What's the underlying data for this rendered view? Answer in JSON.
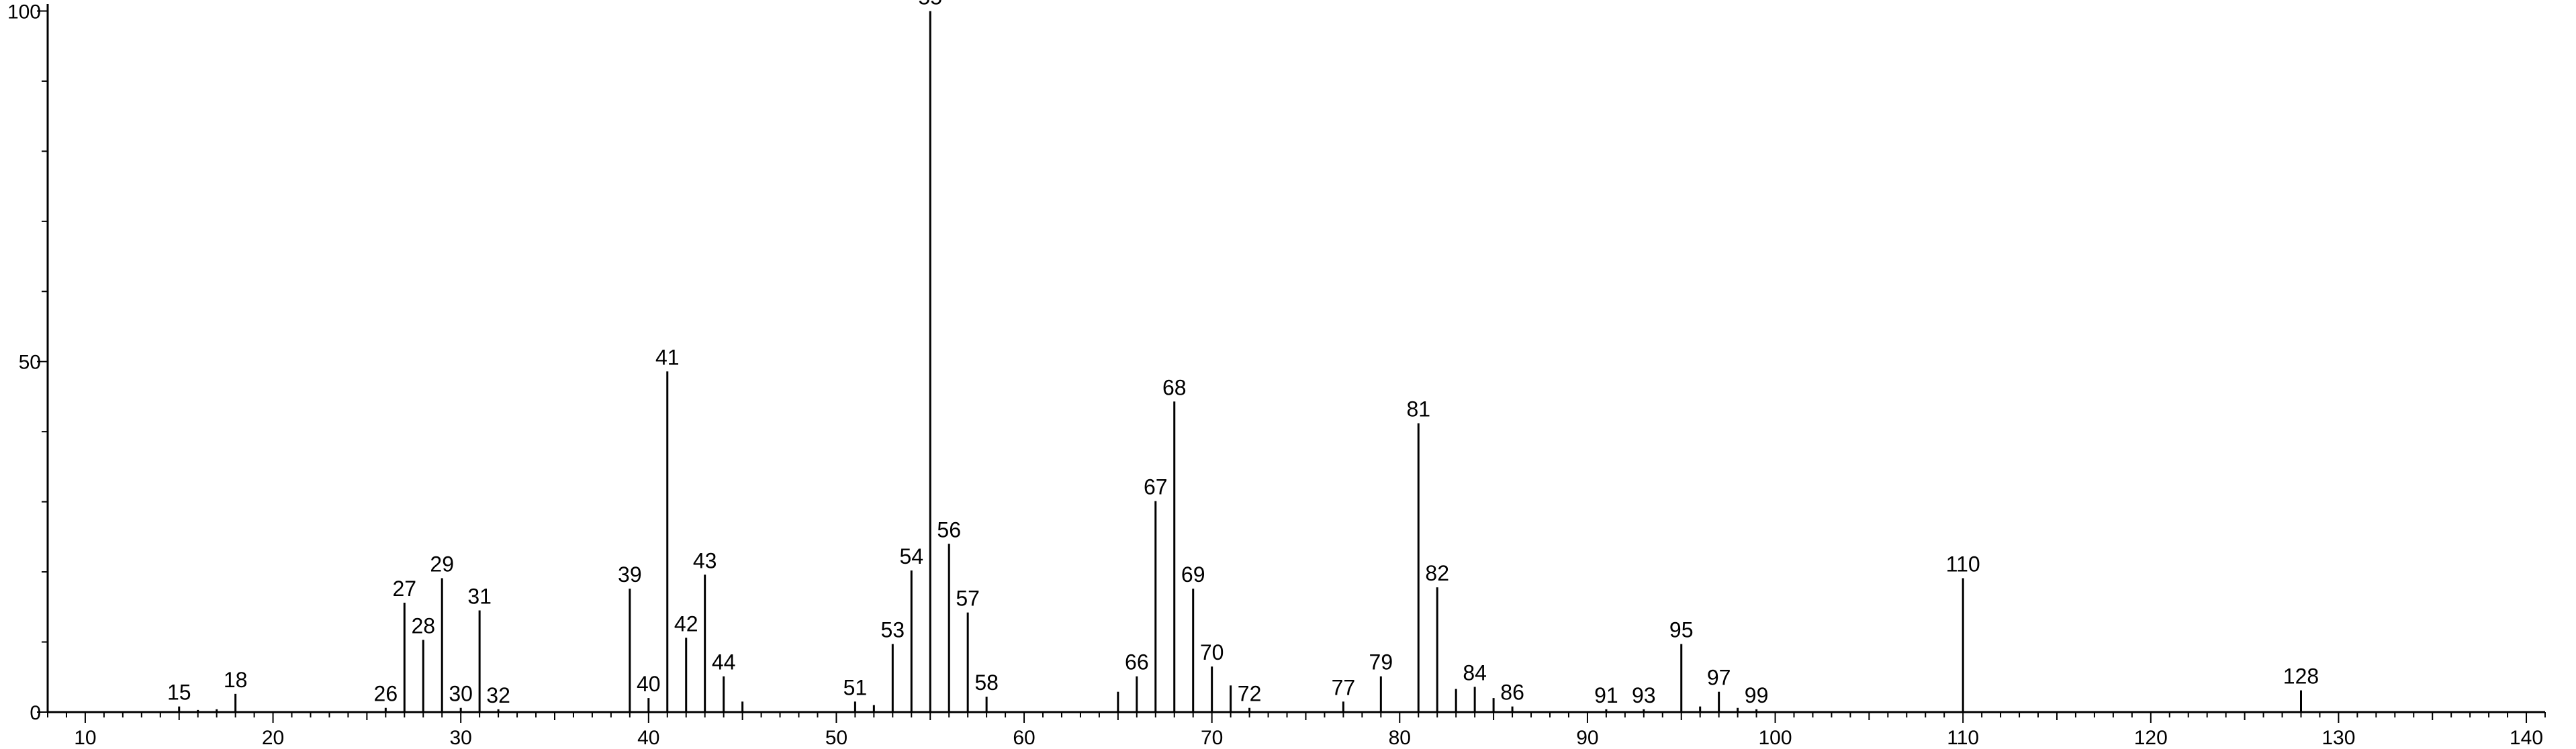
{
  "chart_data": {
    "type": "bar",
    "title": "",
    "xlabel": "",
    "ylabel": "",
    "xlim": [
      8,
      141
    ],
    "ylim": [
      0,
      101
    ],
    "grid": false,
    "x_ticks": [
      10,
      20,
      30,
      40,
      50,
      60,
      70,
      80,
      90,
      100,
      110,
      120,
      130,
      140
    ],
    "y_ticks": [
      0,
      50,
      100
    ],
    "peaks": [
      {
        "mz": 15,
        "intensity": 0.8,
        "label": "15"
      },
      {
        "mz": 16,
        "intensity": 0.3,
        "label": ""
      },
      {
        "mz": 17,
        "intensity": 0.4,
        "label": ""
      },
      {
        "mz": 18,
        "intensity": 2.6,
        "label": "18"
      },
      {
        "mz": 26,
        "intensity": 0.6,
        "label": "26"
      },
      {
        "mz": 27,
        "intensity": 15.6,
        "label": "27"
      },
      {
        "mz": 28,
        "intensity": 10.3,
        "label": "28"
      },
      {
        "mz": 29,
        "intensity": 19.1,
        "label": "29"
      },
      {
        "mz": 30,
        "intensity": 0.6,
        "label": "30"
      },
      {
        "mz": 31,
        "intensity": 14.5,
        "label": "31"
      },
      {
        "mz": 32,
        "intensity": 0.4,
        "label": "32"
      },
      {
        "mz": 39,
        "intensity": 17.6,
        "label": "39"
      },
      {
        "mz": 40,
        "intensity": 2.0,
        "label": "40"
      },
      {
        "mz": 41,
        "intensity": 48.6,
        "label": "41"
      },
      {
        "mz": 42,
        "intensity": 10.6,
        "label": "42"
      },
      {
        "mz": 43,
        "intensity": 19.6,
        "label": "43"
      },
      {
        "mz": 44,
        "intensity": 5.1,
        "label": "44"
      },
      {
        "mz": 45,
        "intensity": 1.5,
        "label": ""
      },
      {
        "mz": 51,
        "intensity": 1.5,
        "label": "51"
      },
      {
        "mz": 52,
        "intensity": 1.0,
        "label": ""
      },
      {
        "mz": 53,
        "intensity": 9.7,
        "label": "53"
      },
      {
        "mz": 54,
        "intensity": 20.2,
        "label": "54"
      },
      {
        "mz": 55,
        "intensity": 100.0,
        "label": "55"
      },
      {
        "mz": 56,
        "intensity": 24.0,
        "label": "56"
      },
      {
        "mz": 57,
        "intensity": 14.2,
        "label": "57"
      },
      {
        "mz": 58,
        "intensity": 2.2,
        "label": "58"
      },
      {
        "mz": 65,
        "intensity": 2.9,
        "label": ""
      },
      {
        "mz": 66,
        "intensity": 5.1,
        "label": "66"
      },
      {
        "mz": 67,
        "intensity": 30.1,
        "label": "67"
      },
      {
        "mz": 68,
        "intensity": 44.3,
        "label": "68"
      },
      {
        "mz": 69,
        "intensity": 17.6,
        "label": "69"
      },
      {
        "mz": 70,
        "intensity": 6.5,
        "label": "70"
      },
      {
        "mz": 71,
        "intensity": 3.8,
        "label": ""
      },
      {
        "mz": 72,
        "intensity": 0.6,
        "label": "72"
      },
      {
        "mz": 77,
        "intensity": 1.5,
        "label": "77"
      },
      {
        "mz": 79,
        "intensity": 5.1,
        "label": "79"
      },
      {
        "mz": 81,
        "intensity": 41.2,
        "label": "81"
      },
      {
        "mz": 82,
        "intensity": 17.8,
        "label": "82"
      },
      {
        "mz": 83,
        "intensity": 3.3,
        "label": ""
      },
      {
        "mz": 84,
        "intensity": 3.6,
        "label": "84"
      },
      {
        "mz": 85,
        "intensity": 2.0,
        "label": ""
      },
      {
        "mz": 86,
        "intensity": 0.8,
        "label": "86"
      },
      {
        "mz": 91,
        "intensity": 0.4,
        "label": "91"
      },
      {
        "mz": 93,
        "intensity": 0.4,
        "label": "93"
      },
      {
        "mz": 95,
        "intensity": 9.7,
        "label": "95"
      },
      {
        "mz": 96,
        "intensity": 0.8,
        "label": ""
      },
      {
        "mz": 97,
        "intensity": 2.9,
        "label": "97"
      },
      {
        "mz": 98,
        "intensity": 0.6,
        "label": ""
      },
      {
        "mz": 99,
        "intensity": 0.4,
        "label": "99"
      },
      {
        "mz": 110,
        "intensity": 19.1,
        "label": "110"
      },
      {
        "mz": 128,
        "intensity": 3.1,
        "label": "128"
      }
    ]
  }
}
